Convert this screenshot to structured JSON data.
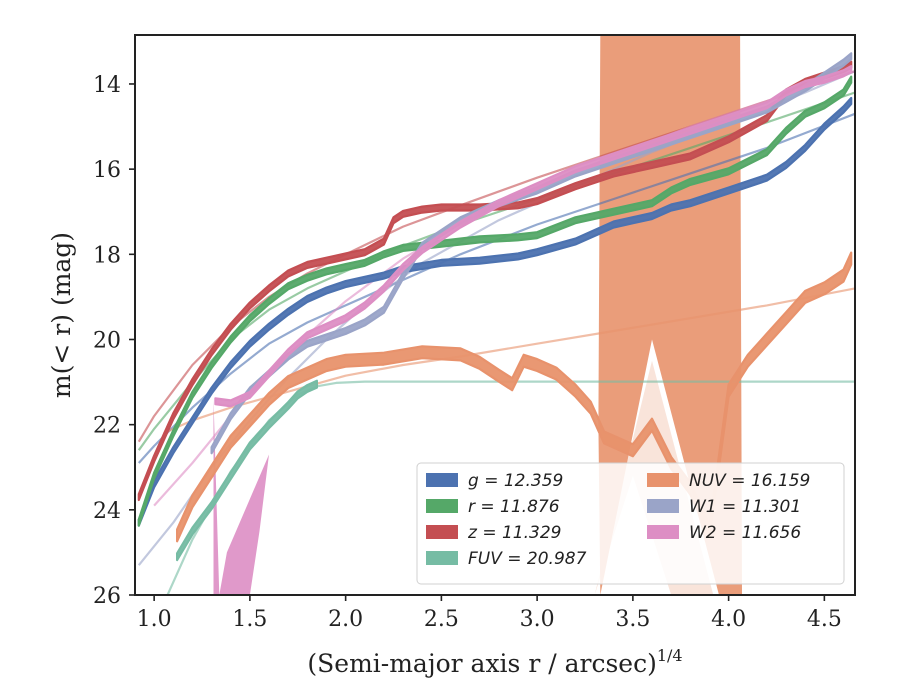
{
  "chart_data": {
    "type": "line",
    "title": "",
    "xlabel": "(Semi-major axis r / arcsec)",
    "xlabel_superscript": "1/4",
    "ylabel": "m(< r) (mag)",
    "xlim": [
      0.9,
      4.66
    ],
    "ylim": [
      26,
      12.85
    ],
    "y_inverted": true,
    "x_ticks": [
      "1.0",
      "1.5",
      "2.0",
      "2.5",
      "3.0",
      "3.5",
      "4.0",
      "4.5"
    ],
    "y_ticks": [
      "14",
      "16",
      "18",
      "20",
      "22",
      "24",
      "26"
    ],
    "grid": false,
    "legend_position": "lower-right",
    "legend_columns": 2,
    "legend": [
      {
        "band": "g",
        "label": "g = 12.359",
        "color": "#4c72b0"
      },
      {
        "band": "NUV",
        "label": "NUV = 16.159",
        "color": "#e8926c"
      },
      {
        "band": "r",
        "label": "r = 11.876",
        "color": "#55a868"
      },
      {
        "band": "W1",
        "label": "W1 = 11.301",
        "color": "#9aa4c8"
      },
      {
        "band": "z",
        "label": "z = 11.329",
        "color": "#c44e52"
      },
      {
        "band": "W2",
        "label": "W2 = 11.656",
        "color": "#dd8ec4"
      },
      {
        "band": "FUV",
        "label": "FUV = 20.987",
        "color": "#76bca4"
      }
    ],
    "series": [
      {
        "name": "g",
        "color": "#4c72b0",
        "band_width": 0.14,
        "x": [
          0.92,
          1.0,
          1.1,
          1.2,
          1.3,
          1.4,
          1.5,
          1.6,
          1.7,
          1.8,
          1.9,
          2.0,
          2.2,
          2.3,
          2.5,
          2.7,
          2.9,
          3.0,
          3.2,
          3.4,
          3.6,
          3.7,
          3.8,
          4.0,
          4.2,
          4.3,
          4.4,
          4.5,
          4.6,
          4.64
        ],
        "y": [
          24.3,
          23.4,
          22.6,
          21.9,
          21.2,
          20.6,
          20.1,
          19.7,
          19.35,
          19.05,
          18.85,
          18.7,
          18.5,
          18.35,
          18.2,
          18.15,
          18.05,
          17.95,
          17.7,
          17.3,
          17.1,
          16.9,
          16.8,
          16.5,
          16.2,
          15.9,
          15.5,
          15.0,
          14.6,
          14.4
        ]
      },
      {
        "name": "r",
        "color": "#55a868",
        "band_width": 0.14,
        "x": [
          0.92,
          1.0,
          1.1,
          1.2,
          1.3,
          1.4,
          1.5,
          1.6,
          1.7,
          1.8,
          1.9,
          2.0,
          2.1,
          2.2,
          2.3,
          2.4,
          2.5,
          2.7,
          2.9,
          3.0,
          3.2,
          3.4,
          3.6,
          3.7,
          3.8,
          4.0,
          4.2,
          4.3,
          4.4,
          4.5,
          4.6,
          4.64
        ],
        "y": [
          24.3,
          23.2,
          22.2,
          21.3,
          20.6,
          20.0,
          19.5,
          19.1,
          18.75,
          18.55,
          18.4,
          18.3,
          18.2,
          18.0,
          17.85,
          17.8,
          17.75,
          17.65,
          17.6,
          17.55,
          17.2,
          17.0,
          16.8,
          16.5,
          16.3,
          16.05,
          15.6,
          15.1,
          14.7,
          14.5,
          14.2,
          13.9
        ]
      },
      {
        "name": "z",
        "color": "#c44e52",
        "band_width": 0.14,
        "x": [
          0.92,
          1.0,
          1.1,
          1.2,
          1.3,
          1.4,
          1.5,
          1.6,
          1.7,
          1.8,
          1.9,
          2.0,
          2.1,
          2.2,
          2.25,
          2.3,
          2.4,
          2.5,
          2.7,
          2.9,
          3.0,
          3.2,
          3.4,
          3.6,
          3.8,
          4.0,
          4.2,
          4.3,
          4.4,
          4.5,
          4.6,
          4.64
        ],
        "y": [
          23.7,
          22.8,
          21.8,
          21.0,
          20.3,
          19.7,
          19.2,
          18.8,
          18.45,
          18.25,
          18.15,
          18.05,
          17.95,
          17.7,
          17.2,
          17.05,
          16.95,
          16.9,
          16.9,
          16.85,
          16.75,
          16.4,
          16.1,
          15.9,
          15.7,
          15.3,
          14.8,
          14.2,
          13.95,
          13.8,
          13.65,
          13.55
        ]
      },
      {
        "name": "NUV",
        "color": "#e8926c",
        "band_width": 0.28,
        "x": [
          1.12,
          1.2,
          1.3,
          1.4,
          1.5,
          1.6,
          1.7,
          1.8,
          1.9,
          2.0,
          2.2,
          2.4,
          2.6,
          2.7,
          2.8,
          2.87,
          2.93,
          3.0,
          3.1,
          3.2,
          3.28,
          3.35,
          3.5,
          3.6,
          3.7,
          3.8,
          3.9,
          4.0,
          4.1,
          4.2,
          4.3,
          4.4,
          4.5,
          4.6,
          4.64
        ],
        "y": [
          24.6,
          23.8,
          23.1,
          22.4,
          21.9,
          21.4,
          21.0,
          20.8,
          20.6,
          20.5,
          20.45,
          20.3,
          20.35,
          20.55,
          20.85,
          21.05,
          20.5,
          20.6,
          20.8,
          21.2,
          21.6,
          22.3,
          22.6,
          22.0,
          22.9,
          23.5,
          24.5,
          21.2,
          20.5,
          20.0,
          19.5,
          19.0,
          18.8,
          18.5,
          18.1
        ]
      },
      {
        "name": "W1",
        "color": "#9aa4c8",
        "band_width": 0.14,
        "x": [
          1.3,
          1.4,
          1.5,
          1.6,
          1.7,
          1.8,
          1.9,
          2.0,
          2.1,
          2.2,
          2.3,
          2.4,
          2.6,
          2.8,
          3.0,
          3.2,
          3.4,
          3.6,
          3.8,
          4.0,
          4.2,
          4.3,
          4.4,
          4.5,
          4.6,
          4.64
        ],
        "y": [
          22.6,
          21.8,
          21.2,
          20.8,
          20.4,
          20.1,
          19.95,
          19.8,
          19.6,
          19.3,
          18.5,
          17.8,
          17.2,
          16.8,
          16.5,
          16.1,
          15.8,
          15.5,
          15.2,
          14.9,
          14.6,
          14.35,
          14.1,
          13.8,
          13.5,
          13.35
        ]
      },
      {
        "name": "W2",
        "color": "#dd8ec4",
        "band_width": 0.14,
        "x": [
          1.32,
          1.4,
          1.5,
          1.6,
          1.7,
          1.8,
          1.9,
          2.0,
          2.1,
          2.2,
          2.3,
          2.4,
          2.6,
          2.8,
          3.0,
          3.2,
          3.4,
          3.6,
          3.8,
          4.0,
          4.2,
          4.3,
          4.4,
          4.5,
          4.6,
          4.64
        ],
        "y": [
          21.45,
          21.5,
          21.3,
          20.8,
          20.3,
          19.9,
          19.7,
          19.5,
          19.2,
          18.8,
          18.3,
          17.9,
          17.3,
          16.8,
          16.4,
          16.0,
          15.7,
          15.4,
          15.1,
          14.8,
          14.5,
          14.2,
          14.0,
          13.9,
          13.75,
          13.65
        ]
      },
      {
        "name": "FUV",
        "color": "#76bca4",
        "band_width": 0.16,
        "x": [
          1.12,
          1.2,
          1.3,
          1.4,
          1.5,
          1.6,
          1.7,
          1.75,
          1.8,
          1.85
        ],
        "y": [
          25.1,
          24.5,
          23.9,
          23.2,
          22.5,
          22.0,
          21.55,
          21.3,
          21.15,
          21.05
        ]
      }
    ],
    "models": [
      {
        "name": "g-model",
        "color": "#4c72b0",
        "x": [
          0.92,
          1.0,
          1.2,
          1.4,
          1.6,
          1.8,
          2.0,
          2.3,
          2.6,
          3.0,
          3.4,
          3.8,
          4.2,
          4.66
        ],
        "y": [
          22.9,
          22.5,
          21.6,
          20.8,
          20.1,
          19.6,
          19.2,
          18.6,
          18.0,
          17.3,
          16.7,
          16.1,
          15.5,
          14.7
        ]
      },
      {
        "name": "r-model",
        "color": "#55a868",
        "x": [
          0.92,
          1.0,
          1.2,
          1.4,
          1.6,
          1.8,
          2.0,
          2.3,
          2.6,
          3.0,
          3.4,
          3.8,
          4.2,
          4.66
        ],
        "y": [
          22.6,
          22.1,
          21.0,
          20.0,
          19.3,
          18.8,
          18.4,
          17.8,
          17.3,
          16.7,
          16.1,
          15.5,
          14.9,
          14.2
        ]
      },
      {
        "name": "z-model",
        "color": "#c44e52",
        "x": [
          0.92,
          1.0,
          1.2,
          1.4,
          1.6,
          1.8,
          2.0,
          2.3,
          2.6,
          3.0,
          3.4,
          3.8,
          4.2,
          4.66
        ],
        "y": [
          22.4,
          21.8,
          20.6,
          19.7,
          19.0,
          18.45,
          18.0,
          17.35,
          16.85,
          16.2,
          15.6,
          15.0,
          14.4,
          13.7
        ]
      },
      {
        "name": "NUV-model",
        "color": "#e8926c",
        "x": [
          1.05,
          1.2,
          1.4,
          1.6,
          1.8,
          2.0,
          2.3,
          2.6,
          3.0,
          3.4,
          3.8,
          4.2,
          4.66
        ],
        "y": [
          22.2,
          21.9,
          21.6,
          21.35,
          21.1,
          20.85,
          20.6,
          20.4,
          20.1,
          19.8,
          19.5,
          19.2,
          18.8
        ]
      },
      {
        "name": "W1-model",
        "color": "#9aa4c8",
        "x": [
          0.92,
          1.1,
          1.3,
          1.5,
          1.7,
          1.9,
          2.1,
          2.4,
          2.8,
          3.2,
          3.6,
          4.0,
          4.4,
          4.66
        ],
        "y": [
          25.3,
          24.3,
          23.0,
          21.9,
          20.9,
          20.0,
          19.2,
          18.2,
          17.2,
          16.4,
          15.6,
          14.9,
          14.2,
          13.7
        ]
      },
      {
        "name": "W2-model",
        "color": "#dd8ec4",
        "x": [
          1.0,
          1.2,
          1.4,
          1.6,
          1.8,
          2.0,
          2.3,
          2.6,
          3.0,
          3.4,
          3.8,
          4.2,
          4.66
        ],
        "y": [
          23.9,
          22.9,
          21.8,
          20.8,
          19.9,
          19.1,
          18.1,
          17.3,
          16.4,
          15.7,
          15.0,
          14.4,
          13.7
        ]
      },
      {
        "name": "FUV-model",
        "color": "#76bca4",
        "x": [
          1.05,
          1.2,
          1.4,
          1.6,
          1.75,
          1.85,
          1.95,
          2.1,
          2.5,
          3.0,
          3.5,
          4.0,
          4.66
        ],
        "y": [
          26.2,
          24.7,
          23.1,
          21.9,
          21.3,
          21.1,
          21.02,
          20.99,
          20.99,
          20.99,
          20.99,
          20.99,
          20.99
        ]
      }
    ],
    "fills": [
      {
        "name": "nuv-spike",
        "color": "#e8926c",
        "x": [
          3.32,
          3.33,
          3.45,
          3.58,
          3.62,
          4.06,
          4.07,
          3.95,
          3.6,
          3.33
        ],
        "y": [
          22.0,
          12.85,
          12.85,
          12.85,
          12.85,
          12.85,
          26.0,
          26.0,
          20.0,
          26.0
        ],
        "faint": {
          "x": [
            3.3,
            3.6,
            3.92,
            3.7,
            3.5,
            3.3
          ],
          "y": [
            26.0,
            20.5,
            26.0,
            26.0,
            23.2,
            26.0
          ]
        }
      },
      {
        "name": "w2-wedge",
        "color": "#dd8ec4",
        "x": [
          1.31,
          1.31,
          1.5,
          1.55,
          1.6,
          1.38,
          1.34
        ],
        "y": [
          21.4,
          26.0,
          26.0,
          24.5,
          22.7,
          25.0,
          26.0
        ]
      }
    ]
  }
}
